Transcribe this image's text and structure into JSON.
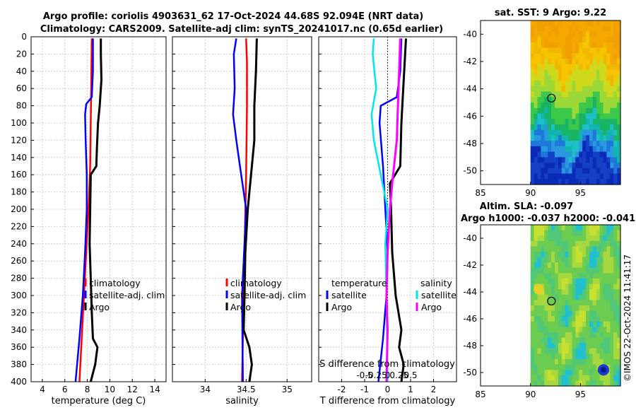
{
  "figure": {
    "title_line1": "Argo profile: coriolis 4903631_62 17-Oct-2024 44.68S 92.094E (NRT data)",
    "title_line2": "Climatology: CARS2009. Satellite-adj clim: synTS_20241017.nc (0.65d earlier)",
    "watermark": "©IMOS 22-Oct-2024 11:41:17"
  },
  "colors": {
    "climatology": "#ff0000",
    "satellite": "#0000ff",
    "argo": "#000000",
    "s_satellite": "#00e5ee",
    "s_argo": "#ff00ff"
  },
  "chart_data": [
    {
      "type": "line",
      "name": "temperature-profile",
      "xlabel": "temperature (deg C)",
      "xlim": [
        3,
        15
      ],
      "xticks": [
        4,
        6,
        8,
        10,
        12,
        14
      ],
      "xticklabels": [
        "4",
        "6",
        "8",
        "10",
        "12",
        "14"
      ],
      "ylim": [
        400,
        0
      ],
      "yticks": [
        0,
        20,
        40,
        60,
        80,
        100,
        120,
        140,
        160,
        180,
        200,
        220,
        240,
        260,
        280,
        300,
        320,
        340,
        360,
        380,
        400
      ],
      "yticklabels": [
        "0",
        "20",
        "40",
        "60",
        "80",
        "100",
        "120",
        "140",
        "160",
        "180",
        "200",
        "220",
        "240",
        "260",
        "280",
        "300",
        "320",
        "340",
        "360",
        "380",
        "400"
      ],
      "legend": [
        "climatology",
        "satellite-adj. clim",
        "Argo"
      ],
      "series": [
        {
          "name": "climatology",
          "color": "#ff0000",
          "depth": [
            2,
            50,
            100,
            150,
            200,
            250,
            300,
            350,
            400
          ],
          "values": [
            8.4,
            8.35,
            8.3,
            8.25,
            8.1,
            7.9,
            7.7,
            7.5,
            7.3
          ]
        },
        {
          "name": "satellite-adj. clim",
          "color": "#0000ff",
          "depth": [
            2,
            40,
            70,
            78,
            90,
            120,
            160,
            200,
            250,
            300,
            350,
            400
          ],
          "values": [
            8.5,
            8.5,
            8.4,
            7.9,
            7.8,
            7.85,
            7.95,
            7.95,
            7.8,
            7.6,
            7.3,
            6.95
          ]
        },
        {
          "name": "Argo",
          "color": "#000000",
          "depth": [
            2,
            20,
            50,
            80,
            100,
            130,
            150,
            160,
            200,
            240,
            280,
            320,
            350,
            360,
            380,
            400
          ],
          "values": [
            9.2,
            9.2,
            9.25,
            9.1,
            8.95,
            8.85,
            8.8,
            8.3,
            8.25,
            8.2,
            8.3,
            8.4,
            8.5,
            8.9,
            8.7,
            8.3
          ]
        }
      ]
    },
    {
      "type": "line",
      "name": "salinity-profile",
      "xlabel": "salinity",
      "xlim": [
        33.6,
        35.3
      ],
      "xticks": [
        34,
        34.5,
        35
      ],
      "xticklabels": [
        "34",
        "34.5",
        "35"
      ],
      "ylim": [
        400,
        0
      ],
      "legend": [
        "climatology",
        "satellite-adj. clim",
        "Argo"
      ],
      "series": [
        {
          "name": "climatology",
          "color": "#ff0000",
          "depth": [
            2,
            30,
            80,
            160,
            250,
            350,
            400
          ],
          "values": [
            34.5,
            34.51,
            34.51,
            34.5,
            34.48,
            34.46,
            34.45
          ]
        },
        {
          "name": "satellite-adj. clim",
          "color": "#0000ff",
          "depth": [
            2,
            20,
            60,
            90,
            120,
            160,
            200,
            240,
            300,
            400
          ],
          "values": [
            34.38,
            34.35,
            34.36,
            34.34,
            34.38,
            34.44,
            34.5,
            34.48,
            34.45,
            34.46
          ]
        },
        {
          "name": "Argo",
          "color": "#000000",
          "depth": [
            2,
            40,
            80,
            120,
            170,
            200,
            250,
            300,
            340,
            360,
            380,
            400
          ],
          "values": [
            34.63,
            34.62,
            34.6,
            34.6,
            34.55,
            34.52,
            34.49,
            34.48,
            34.47,
            34.54,
            34.57,
            34.54
          ]
        }
      ]
    },
    {
      "type": "line",
      "name": "difference-profile",
      "xlabel": "T difference from climatology",
      "xlabel_top": "S difference from climatology",
      "xlim": [
        -3,
        3
      ],
      "xticks": [
        -2,
        -1,
        0,
        1,
        2
      ],
      "xticklabels": [
        "-2",
        "-1",
        "0",
        "1",
        "2"
      ],
      "top_ticks": [
        -1,
        -0.5,
        0,
        0.5,
        1
      ],
      "top_ticklabels": [
        "-0.5",
        "-0.25",
        "0",
        "0.25",
        "0.5"
      ],
      "ylim": [
        400,
        0
      ],
      "legend_temperature": {
        "title": "temperature",
        "items": [
          "satellite",
          "Argo"
        ]
      },
      "legend_salinity": {
        "title": "salinity",
        "items": [
          "satellite",
          "Argo"
        ]
      },
      "series": [
        {
          "name": "T satellite",
          "color": "#0000ff",
          "depth": [
            2,
            40,
            70,
            80,
            100,
            150,
            200,
            250,
            300,
            350,
            400
          ],
          "values": [
            0.6,
            0.55,
            0.4,
            -0.3,
            -0.35,
            -0.2,
            -0.1,
            0.0,
            -0.05,
            -0.2,
            -0.4
          ]
        },
        {
          "name": "T Argo",
          "color": "#000000",
          "depth": [
            2,
            50,
            100,
            150,
            170,
            200,
            250,
            300,
            340,
            360,
            380,
            400
          ],
          "values": [
            0.8,
            0.7,
            0.6,
            0.55,
            0.1,
            0.15,
            0.2,
            0.35,
            0.6,
            0.5,
            0.7,
            0.6
          ]
        },
        {
          "name": "S satellite",
          "color": "#00e5ee",
          "depth": [
            2,
            20,
            60,
            90,
            120,
            160,
            200,
            240,
            300,
            400
          ],
          "values": [
            -0.6,
            -0.65,
            -0.5,
            -0.7,
            -0.6,
            -0.3,
            0.0,
            -0.1,
            -0.05,
            0.0
          ]
        },
        {
          "name": "S Argo",
          "color": "#ff00ff",
          "depth": [
            2,
            40,
            80,
            120,
            170,
            200,
            250,
            300,
            340,
            400
          ],
          "values": [
            0.55,
            0.5,
            0.45,
            0.4,
            0.2,
            0.1,
            0.0,
            -0.05,
            0.0,
            -0.05
          ]
        }
      ]
    },
    {
      "type": "heatmap",
      "name": "sst-map",
      "title": "sat. SST: 9 Argo: 9.22",
      "xlim": [
        85,
        99
      ],
      "ylim": [
        -51,
        -39
      ],
      "xticks": [
        85,
        90,
        95
      ],
      "xticklabels": [
        "85",
        "90",
        "95"
      ],
      "yticks": [
        -40,
        -42,
        -44,
        -46,
        -48,
        -50
      ],
      "yticklabels": [
        "-40",
        "-42",
        "-44",
        "-46",
        "-48",
        "-50"
      ],
      "data_xlim": [
        90,
        99
      ],
      "marker": {
        "lon": 92.094,
        "lat": -44.68
      }
    },
    {
      "type": "heatmap",
      "name": "sla-map",
      "title": "Altim. SLA: -0.097",
      "subtitle": "Argo h1000: -0.037 h2000: -0.041",
      "xlim": [
        85,
        99
      ],
      "ylim": [
        -51,
        -39
      ],
      "xticks": [
        85,
        90,
        95
      ],
      "xticklabels": [
        "85",
        "90",
        "95"
      ],
      "yticks": [
        -40,
        -42,
        -44,
        -46,
        -48,
        -50
      ],
      "yticklabels": [
        "-40",
        "-42",
        "-44",
        "-46",
        "-48",
        "-50"
      ],
      "data_xlim": [
        90,
        99
      ],
      "marker": {
        "lon": 92.094,
        "lat": -44.68
      }
    }
  ]
}
